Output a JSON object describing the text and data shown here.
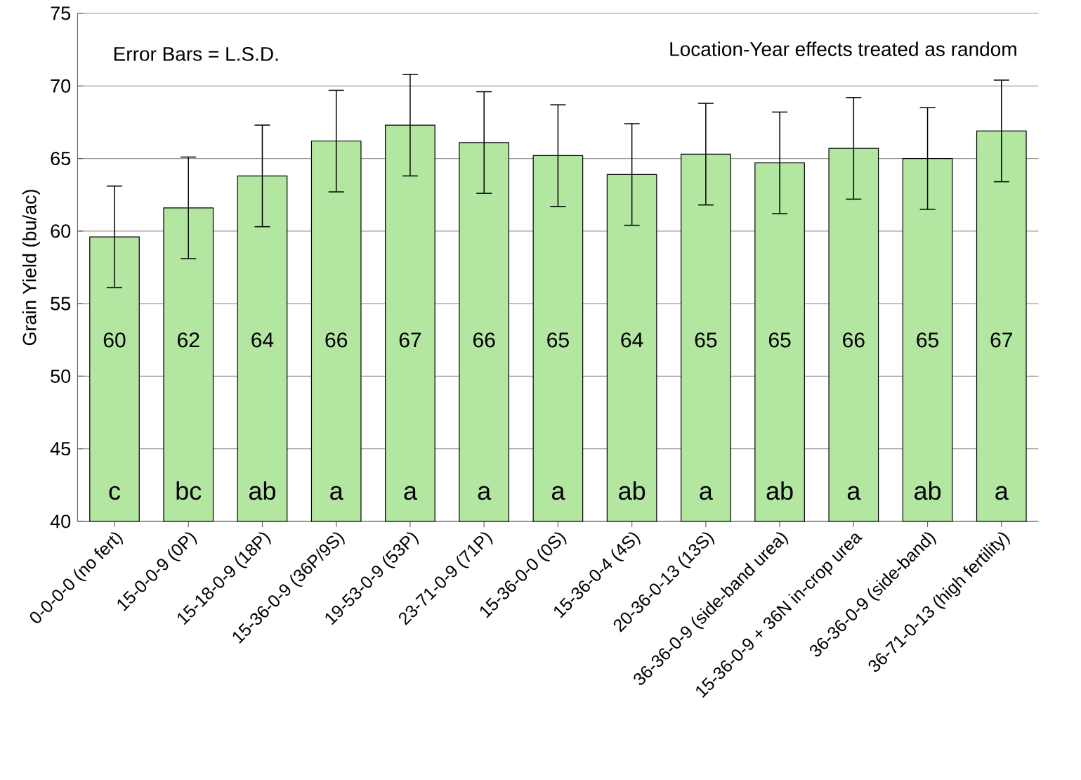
{
  "chart_data": {
    "type": "bar",
    "ylabel": "Grain Yield (bu/ac)",
    "categories": [
      "0-0-0-0 (no fert)",
      "15-0-0-9 (0P)",
      "15-18-0-9 (18P)",
      "15-36-0-9 (36P/9S)",
      "19-53-0-9 (53P)",
      "23-71-0-9 (71P)",
      "15-36-0-0 (0S)",
      "15-36-0-4 (4S)",
      "20-36-0-13 (13S)",
      "36-36-0-9 (side-band urea)",
      "15-36-0-9 + 36N in-crop urea",
      "36-36-0-9 (side-band)",
      "36-71-0-13 (high fertility)"
    ],
    "values": [
      59.6,
      61.6,
      63.8,
      66.2,
      67.3,
      66.1,
      65.2,
      63.9,
      65.3,
      64.7,
      65.7,
      65.0,
      66.9
    ],
    "value_labels": [
      "60",
      "62",
      "64",
      "66",
      "67",
      "66",
      "65",
      "64",
      "65",
      "65",
      "66",
      "65",
      "67"
    ],
    "errors": [
      3.5,
      3.5,
      3.5,
      3.5,
      3.5,
      3.5,
      3.5,
      3.5,
      3.5,
      3.5,
      3.5,
      3.5,
      3.5
    ],
    "color": "#b3e6a1",
    "ylim": [
      40,
      75
    ],
    "yticks": [
      40,
      45,
      50,
      55,
      60,
      65,
      70,
      75
    ],
    "grid": "y",
    "annotations": [
      "Error Bars = L.S.D.",
      "Location-Year effects treated as random",
      "c",
      "bc",
      "ab",
      "a",
      "a",
      "a",
      "a",
      "ab",
      "a",
      "ab",
      "a",
      "ab",
      "a"
    ]
  }
}
